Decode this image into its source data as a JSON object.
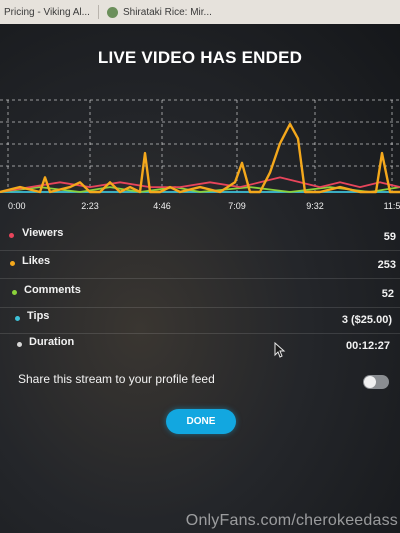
{
  "browser": {
    "tabs": [
      {
        "label": "Pricing - Viking Al..."
      },
      {
        "label": "Shirataki Rice: Mir..."
      }
    ]
  },
  "modal": {
    "title": "LIVE VIDEO HAS ENDED",
    "stats": [
      {
        "label": "Viewers",
        "value": "59",
        "color": "#e8455b"
      },
      {
        "label": "Likes",
        "value": "253",
        "color": "#f4a81c"
      },
      {
        "label": "Comments",
        "value": "52",
        "color": "#8bd23b"
      },
      {
        "label": "Tips",
        "value": "3 ($25.00)",
        "color": "#3ec1d8"
      },
      {
        "label": "Duration",
        "value": "00:12:27",
        "color": "#d8d8d8"
      }
    ],
    "share_label": "Share this stream to your profile feed",
    "share_toggle_on": false,
    "done_label": "DONE"
  },
  "chart_data": {
    "type": "line",
    "x_ticks": [
      "0:00",
      "2:23",
      "4:46",
      "7:09",
      "9:32",
      "11:5"
    ],
    "series": [
      {
        "name": "Likes",
        "color": "#f4a81c",
        "points": [
          [
            0,
            0
          ],
          [
            20,
            1
          ],
          [
            40,
            0
          ],
          [
            45,
            3
          ],
          [
            50,
            0
          ],
          [
            70,
            1
          ],
          [
            80,
            2
          ],
          [
            90,
            0
          ],
          [
            100,
            0
          ],
          [
            110,
            2
          ],
          [
            120,
            0
          ],
          [
            130,
            1
          ],
          [
            140,
            0
          ],
          [
            145,
            8
          ],
          [
            150,
            0
          ],
          [
            160,
            0
          ],
          [
            170,
            1
          ],
          [
            180,
            0
          ],
          [
            200,
            1
          ],
          [
            220,
            0
          ],
          [
            235,
            2
          ],
          [
            242,
            6
          ],
          [
            250,
            0
          ],
          [
            260,
            0
          ],
          [
            270,
            4
          ],
          [
            280,
            10
          ],
          [
            290,
            14
          ],
          [
            298,
            11
          ],
          [
            305,
            0
          ],
          [
            320,
            0
          ],
          [
            340,
            1
          ],
          [
            360,
            0
          ],
          [
            376,
            0
          ],
          [
            382,
            8
          ],
          [
            390,
            0
          ],
          [
            400,
            0
          ]
        ]
      },
      {
        "name": "Viewers",
        "color": "#e8455b",
        "points": [
          [
            0,
            0
          ],
          [
            30,
            1
          ],
          [
            60,
            2
          ],
          [
            90,
            1
          ],
          [
            120,
            2
          ],
          [
            150,
            1
          ],
          [
            180,
            1
          ],
          [
            210,
            2
          ],
          [
            240,
            1
          ],
          [
            260,
            2
          ],
          [
            280,
            3
          ],
          [
            300,
            2
          ],
          [
            320,
            1
          ],
          [
            340,
            2
          ],
          [
            360,
            1
          ],
          [
            380,
            2
          ],
          [
            400,
            1
          ]
        ]
      },
      {
        "name": "Comments",
        "color": "#8bd23b",
        "points": [
          [
            0,
            0
          ],
          [
            40,
            1
          ],
          [
            80,
            0
          ],
          [
            110,
            1
          ],
          [
            140,
            0
          ],
          [
            175,
            1
          ],
          [
            200,
            0
          ],
          [
            250,
            1
          ],
          [
            290,
            0
          ],
          [
            330,
            1
          ],
          [
            370,
            0
          ],
          [
            400,
            1
          ]
        ]
      },
      {
        "name": "Tips",
        "color": "#3ec1d8",
        "points": [
          [
            0,
            0
          ],
          [
            100,
            0
          ],
          [
            200,
            0
          ],
          [
            300,
            0
          ],
          [
            400,
            0
          ]
        ]
      }
    ],
    "grid": true
  },
  "watermark": "OnlyFans.com/cherokeedass"
}
